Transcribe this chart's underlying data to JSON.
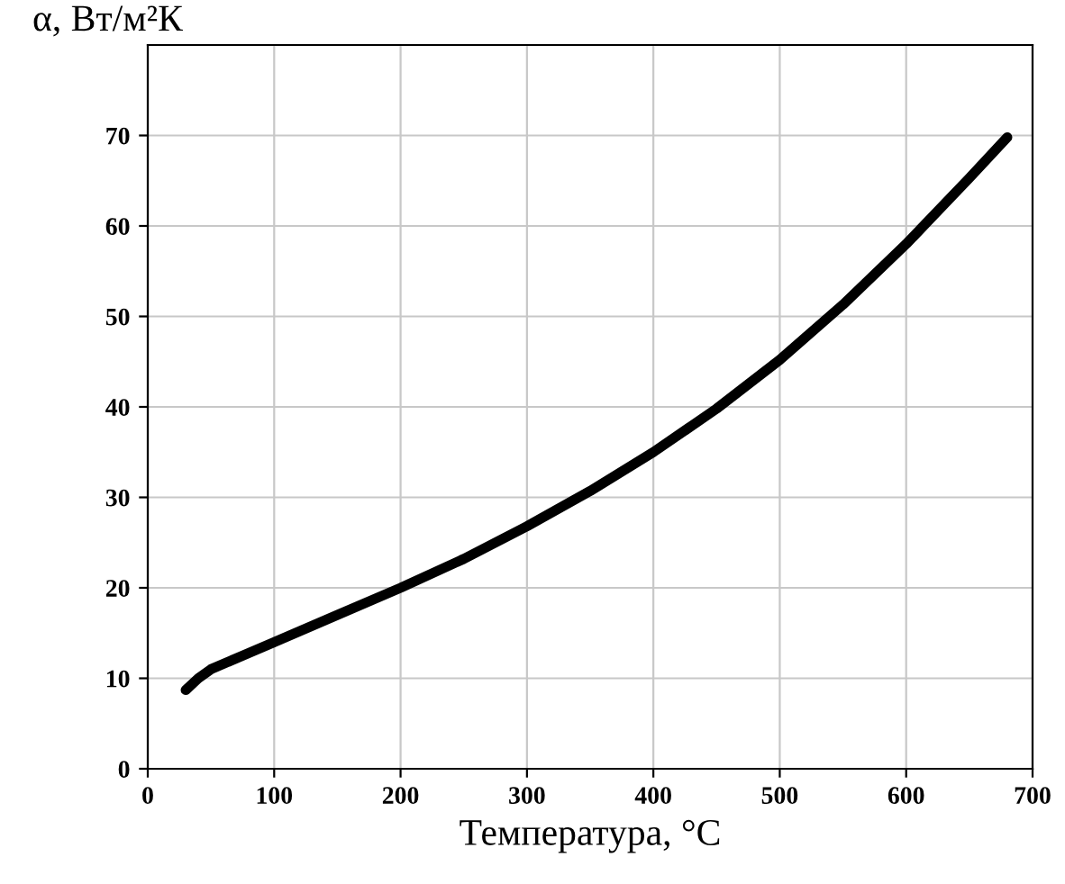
{
  "chart_data": {
    "type": "line",
    "xlabel": "Температура, °С",
    "ylabel": "α, Вт/м²К",
    "x": [
      30,
      40,
      50,
      75,
      100,
      150,
      200,
      250,
      300,
      350,
      400,
      450,
      500,
      550,
      600,
      650,
      680
    ],
    "series": [
      {
        "color": "#000000",
        "values": [
          8.7,
          10,
          11,
          12.5,
          14,
          17,
          20,
          23.2,
          26.8,
          30.7,
          35,
          39.8,
          45.2,
          51.3,
          58,
          65.3,
          69.8
        ]
      }
    ],
    "xlim": [
      0,
      700
    ],
    "xticks": [
      0,
      100,
      200,
      300,
      400,
      500,
      600,
      700
    ],
    "ylim": [
      0,
      80
    ],
    "yticks": [
      0,
      10,
      20,
      30,
      40,
      50,
      60,
      70
    ],
    "grid": true,
    "marker": "none",
    "line_style": "solid",
    "legend": false
  }
}
